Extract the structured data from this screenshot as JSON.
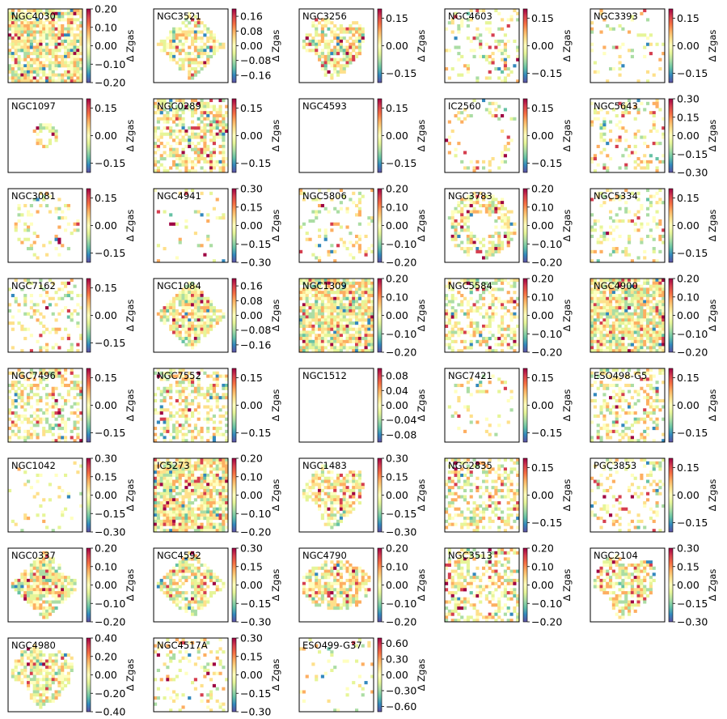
{
  "colorbar_label": "Δ Zgas",
  "colormap": [
    "#5e4fa2",
    "#3288bd",
    "#66c2a5",
    "#abdda4",
    "#e6f598",
    "#ffffbf",
    "#fee08b",
    "#fdae61",
    "#f46d43",
    "#d53e4f",
    "#9e0142"
  ],
  "chart_data": [
    {
      "type": "heatmap",
      "title": "NGC4030",
      "colorbar_ticks": [
        -0.2,
        -0.1,
        0.0,
        0.1,
        0.2
      ],
      "colorbar_tick_labels": [
        "−0.20",
        "−0.10",
        "0.00",
        "0.10",
        "0.20"
      ],
      "vlim": [
        -0.2,
        0.2
      ],
      "colorbar_label": "Δ Zgas",
      "coverage": "full",
      "shape": "square"
    },
    {
      "type": "heatmap",
      "title": "NGC3521",
      "colorbar_ticks": [
        -0.16,
        -0.08,
        0.0,
        0.08,
        0.16
      ],
      "colorbar_tick_labels": [
        "−0.16",
        "−0.08",
        "0.00",
        "0.08",
        "0.16"
      ],
      "vlim": [
        -0.2,
        0.2
      ],
      "colorbar_label": "Δ Zgas",
      "coverage": "ring",
      "shape": "diamond"
    },
    {
      "type": "heatmap",
      "title": "NGC3256",
      "colorbar_ticks": [
        -0.15,
        0.0,
        0.15
      ],
      "colorbar_tick_labels": [
        "−0.15",
        "0.00",
        "0.15"
      ],
      "vlim": [
        -0.2,
        0.2
      ],
      "colorbar_label": "Δ Zgas",
      "coverage": "blob",
      "shape": "irregular"
    },
    {
      "type": "heatmap",
      "title": "NGC4603",
      "colorbar_ticks": [
        -0.15,
        0.0,
        0.15
      ],
      "colorbar_tick_labels": [
        "−0.15",
        "0.00",
        "0.15"
      ],
      "vlim": [
        -0.2,
        0.2
      ],
      "colorbar_label": "Δ Zgas",
      "coverage": "sparse",
      "shape": "square"
    },
    {
      "type": "heatmap",
      "title": "NGC3393",
      "colorbar_ticks": [
        -0.15,
        0.0,
        0.15
      ],
      "colorbar_tick_labels": [
        "−0.15",
        "0.00",
        "0.15"
      ],
      "vlim": [
        -0.2,
        0.2
      ],
      "colorbar_label": "Δ Zgas",
      "coverage": "very-sparse",
      "shape": "square"
    },
    {
      "type": "heatmap",
      "title": "NGC1097",
      "colorbar_ticks": [
        -0.15,
        0.0,
        0.15
      ],
      "colorbar_tick_labels": [
        "−0.15",
        "0.00",
        "0.15"
      ],
      "vlim": [
        -0.2,
        0.2
      ],
      "colorbar_label": "Δ Zgas",
      "coverage": "small-ring",
      "shape": "ring"
    },
    {
      "type": "heatmap",
      "title": "NGC0289",
      "colorbar_ticks": [
        -0.15,
        0.0,
        0.15
      ],
      "colorbar_tick_labels": [
        "−0.15",
        "0.00",
        "0.15"
      ],
      "vlim": [
        -0.2,
        0.2
      ],
      "colorbar_label": "Δ Zgas",
      "coverage": "ring",
      "shape": "square"
    },
    {
      "type": "heatmap",
      "title": "NGC4593",
      "colorbar_ticks": [
        -0.15,
        0.0,
        0.15
      ],
      "colorbar_tick_labels": [
        "−0.15",
        "0.00",
        "0.15"
      ],
      "vlim": [
        -0.2,
        0.2
      ],
      "colorbar_label": "Δ Zgas",
      "coverage": "empty",
      "shape": "square"
    },
    {
      "type": "heatmap",
      "title": "IC2560",
      "colorbar_ticks": [
        -0.15,
        0.0,
        0.15
      ],
      "colorbar_tick_labels": [
        "−0.15",
        "0.00",
        "0.15"
      ],
      "vlim": [
        -0.2,
        0.2
      ],
      "colorbar_label": "Δ Zgas",
      "coverage": "sparse",
      "shape": "arc"
    },
    {
      "type": "heatmap",
      "title": "NGC5643",
      "colorbar_ticks": [
        -0.3,
        -0.15,
        0.0,
        0.15,
        0.3
      ],
      "colorbar_tick_labels": [
        "−0.30",
        "−0.15",
        "0.00",
        "0.15",
        "0.30"
      ],
      "vlim": [
        -0.3,
        0.3
      ],
      "colorbar_label": "Δ Zgas",
      "coverage": "sparse",
      "shape": "square"
    },
    {
      "type": "heatmap",
      "title": "NGC3081",
      "colorbar_ticks": [
        -0.15,
        0.0,
        0.15
      ],
      "colorbar_tick_labels": [
        "−0.15",
        "0.00",
        "0.15"
      ],
      "vlim": [
        -0.2,
        0.2
      ],
      "colorbar_label": "Δ Zgas",
      "coverage": "thin-ring",
      "shape": "ring"
    },
    {
      "type": "heatmap",
      "title": "NGC4941",
      "colorbar_ticks": [
        -0.3,
        -0.15,
        0.0,
        0.15,
        0.3
      ],
      "colorbar_tick_labels": [
        "−0.30",
        "−0.15",
        "0.00",
        "0.15",
        "0.30"
      ],
      "vlim": [
        -0.3,
        0.3
      ],
      "colorbar_label": "Δ Zgas",
      "coverage": "very-sparse",
      "shape": "square"
    },
    {
      "type": "heatmap",
      "title": "NGC5806",
      "colorbar_ticks": [
        -0.2,
        -0.1,
        0.0,
        0.1,
        0.2
      ],
      "colorbar_tick_labels": [
        "−0.20",
        "−0.10",
        "0.00",
        "0.10",
        "0.20"
      ],
      "vlim": [
        -0.2,
        0.2
      ],
      "colorbar_label": "Δ Zgas",
      "coverage": "sparse",
      "shape": "square"
    },
    {
      "type": "heatmap",
      "title": "NGC3783",
      "colorbar_ticks": [
        -0.2,
        -0.1,
        0.0,
        0.1,
        0.2
      ],
      "colorbar_tick_labels": [
        "−0.20",
        "−0.10",
        "0.00",
        "0.10",
        "0.20"
      ],
      "vlim": [
        -0.2,
        0.2
      ],
      "colorbar_label": "Δ Zgas",
      "coverage": "ring",
      "shape": "ring"
    },
    {
      "type": "heatmap",
      "title": "NGC5334",
      "colorbar_ticks": [
        -0.15,
        0.0,
        0.15
      ],
      "colorbar_tick_labels": [
        "−0.15",
        "0.00",
        "0.15"
      ],
      "vlim": [
        -0.2,
        0.2
      ],
      "colorbar_label": "Δ Zgas",
      "coverage": "sparse",
      "shape": "square"
    },
    {
      "type": "heatmap",
      "title": "NGC7162",
      "colorbar_ticks": [
        -0.15,
        0.0,
        0.15
      ],
      "colorbar_tick_labels": [
        "−0.15",
        "0.00",
        "0.15"
      ],
      "vlim": [
        -0.2,
        0.2
      ],
      "colorbar_label": "Δ Zgas",
      "coverage": "sparse",
      "shape": "square"
    },
    {
      "type": "heatmap",
      "title": "NGC1084",
      "colorbar_ticks": [
        -0.16,
        -0.08,
        0.0,
        0.08,
        0.16
      ],
      "colorbar_tick_labels": [
        "−0.16",
        "−0.08",
        "0.00",
        "0.08",
        "0.16"
      ],
      "vlim": [
        -0.2,
        0.2
      ],
      "colorbar_label": "Δ Zgas",
      "coverage": "full",
      "shape": "diamond"
    },
    {
      "type": "heatmap",
      "title": "NGC1309",
      "colorbar_ticks": [
        -0.2,
        -0.1,
        0.0,
        0.1,
        0.2
      ],
      "colorbar_tick_labels": [
        "−0.20",
        "−0.10",
        "0.00",
        "0.10",
        "0.20"
      ],
      "vlim": [
        -0.2,
        0.2
      ],
      "colorbar_label": "Δ Zgas",
      "coverage": "full",
      "shape": "square"
    },
    {
      "type": "heatmap",
      "title": "NGC5584",
      "colorbar_ticks": [
        -0.2,
        -0.1,
        0.0,
        0.1,
        0.2
      ],
      "colorbar_tick_labels": [
        "−0.20",
        "−0.10",
        "0.00",
        "0.10",
        "0.20"
      ],
      "vlim": [
        -0.2,
        0.2
      ],
      "colorbar_label": "Δ Zgas",
      "coverage": "patchy",
      "shape": "square"
    },
    {
      "type": "heatmap",
      "title": "NGC4900",
      "colorbar_ticks": [
        -0.2,
        -0.1,
        0.0,
        0.1,
        0.2
      ],
      "colorbar_tick_labels": [
        "−0.20",
        "−0.10",
        "0.00",
        "0.10",
        "0.20"
      ],
      "vlim": [
        -0.2,
        0.2
      ],
      "colorbar_label": "Δ Zgas",
      "coverage": "full",
      "shape": "square"
    },
    {
      "type": "heatmap",
      "title": "NGC7496",
      "colorbar_ticks": [
        -0.15,
        0.0,
        0.15
      ],
      "colorbar_tick_labels": [
        "−0.15",
        "0.00",
        "0.15"
      ],
      "vlim": [
        -0.2,
        0.2
      ],
      "colorbar_label": "Δ Zgas",
      "coverage": "patchy",
      "shape": "square"
    },
    {
      "type": "heatmap",
      "title": "NGC7552",
      "colorbar_ticks": [
        -0.15,
        0.0,
        0.15
      ],
      "colorbar_tick_labels": [
        "−0.15",
        "0.00",
        "0.15"
      ],
      "vlim": [
        -0.2,
        0.2
      ],
      "colorbar_label": "Δ Zgas",
      "coverage": "patchy",
      "shape": "square"
    },
    {
      "type": "heatmap",
      "title": "NGC1512",
      "colorbar_ticks": [
        -0.08,
        -0.04,
        0.0,
        0.04,
        0.08
      ],
      "colorbar_tick_labels": [
        "−0.08",
        "−0.04",
        "0.00",
        "0.04",
        "0.08"
      ],
      "vlim": [
        -0.1,
        0.1
      ],
      "colorbar_label": "Δ Zgas",
      "coverage": "empty",
      "shape": "square"
    },
    {
      "type": "heatmap",
      "title": "NGC7421",
      "colorbar_ticks": [
        -0.15,
        0.0,
        0.15
      ],
      "colorbar_tick_labels": [
        "−0.15",
        "0.00",
        "0.15"
      ],
      "vlim": [
        -0.2,
        0.2
      ],
      "colorbar_label": "Δ Zgas",
      "coverage": "sparse",
      "shape": "ring"
    },
    {
      "type": "heatmap",
      "title": "ESO498-G5",
      "colorbar_ticks": [
        -0.15,
        0.0,
        0.15
      ],
      "colorbar_tick_labels": [
        "−0.15",
        "0.00",
        "0.15"
      ],
      "vlim": [
        -0.2,
        0.2
      ],
      "colorbar_label": "Δ Zgas",
      "coverage": "spiral",
      "shape": "square"
    },
    {
      "type": "heatmap",
      "title": "NGC1042",
      "colorbar_ticks": [
        -0.3,
        -0.15,
        0.0,
        0.15,
        0.3
      ],
      "colorbar_tick_labels": [
        "−0.30",
        "−0.15",
        "0.00",
        "0.15",
        "0.30"
      ],
      "vlim": [
        -0.3,
        0.3
      ],
      "colorbar_label": "Δ Zgas",
      "coverage": "very-sparse",
      "shape": "square"
    },
    {
      "type": "heatmap",
      "title": "IC5273",
      "colorbar_ticks": [
        -0.2,
        -0.1,
        0.0,
        0.1,
        0.2
      ],
      "colorbar_tick_labels": [
        "−0.20",
        "−0.10",
        "0.00",
        "0.10",
        "0.20"
      ],
      "vlim": [
        -0.2,
        0.2
      ],
      "colorbar_label": "Δ Zgas",
      "coverage": "full",
      "shape": "square"
    },
    {
      "type": "heatmap",
      "title": "NGC1483",
      "colorbar_ticks": [
        -0.3,
        -0.15,
        0.0,
        0.15,
        0.3
      ],
      "colorbar_tick_labels": [
        "−0.30",
        "−0.15",
        "0.00",
        "0.15",
        "0.30"
      ],
      "vlim": [
        -0.3,
        0.3
      ],
      "colorbar_label": "Δ Zgas",
      "coverage": "blob",
      "shape": "irregular"
    },
    {
      "type": "heatmap",
      "title": "NGC2835",
      "colorbar_ticks": [
        -0.15,
        0.0,
        0.15
      ],
      "colorbar_tick_labels": [
        "−0.15",
        "0.00",
        "0.15"
      ],
      "vlim": [
        -0.2,
        0.2
      ],
      "colorbar_label": "Δ Zgas",
      "coverage": "patchy",
      "shape": "square"
    },
    {
      "type": "heatmap",
      "title": "PGC3853",
      "colorbar_ticks": [
        -0.15,
        0.0,
        0.15
      ],
      "colorbar_tick_labels": [
        "−0.15",
        "0.00",
        "0.15"
      ],
      "vlim": [
        -0.2,
        0.2
      ],
      "colorbar_label": "Δ Zgas",
      "coverage": "sparse",
      "shape": "square"
    },
    {
      "type": "heatmap",
      "title": "NGC0337",
      "colorbar_ticks": [
        -0.2,
        -0.1,
        0.0,
        0.1,
        0.2
      ],
      "colorbar_tick_labels": [
        "−0.20",
        "−0.10",
        "0.00",
        "0.10",
        "0.20"
      ],
      "vlim": [
        -0.2,
        0.2
      ],
      "colorbar_label": "Δ Zgas",
      "coverage": "full",
      "shape": "diamond"
    },
    {
      "type": "heatmap",
      "title": "NGC4592",
      "colorbar_ticks": [
        -0.3,
        -0.15,
        0.0,
        0.15,
        0.3
      ],
      "colorbar_tick_labels": [
        "−0.30",
        "−0.15",
        "0.00",
        "0.15",
        "0.30"
      ],
      "vlim": [
        -0.3,
        0.3
      ],
      "colorbar_label": "Δ Zgas",
      "coverage": "blob",
      "shape": "diamond"
    },
    {
      "type": "heatmap",
      "title": "NGC4790",
      "colorbar_ticks": [
        -0.2,
        -0.1,
        0.0,
        0.1,
        0.2
      ],
      "colorbar_tick_labels": [
        "−0.20",
        "−0.10",
        "0.00",
        "0.10",
        "0.20"
      ],
      "vlim": [
        -0.2,
        0.2
      ],
      "colorbar_label": "Δ Zgas",
      "coverage": "blob",
      "shape": "ellipse"
    },
    {
      "type": "heatmap",
      "title": "NGC3513",
      "colorbar_ticks": [
        -0.2,
        -0.1,
        0.0,
        0.1,
        0.2
      ],
      "colorbar_tick_labels": [
        "−0.20",
        "−0.10",
        "0.00",
        "0.10",
        "0.20"
      ],
      "vlim": [
        -0.2,
        0.2
      ],
      "colorbar_label": "Δ Zgas",
      "coverage": "patchy",
      "shape": "square"
    },
    {
      "type": "heatmap",
      "title": "NGC2104",
      "colorbar_ticks": [
        -0.3,
        -0.15,
        0.0,
        0.15,
        0.3
      ],
      "colorbar_tick_labels": [
        "−0.30",
        "−0.15",
        "0.00",
        "0.15",
        "0.30"
      ],
      "vlim": [
        -0.3,
        0.3
      ],
      "colorbar_label": "Δ Zgas",
      "coverage": "blob",
      "shape": "irregular"
    },
    {
      "type": "heatmap",
      "title": "NGC4980",
      "colorbar_ticks": [
        -0.4,
        -0.2,
        0.0,
        0.2,
        0.4
      ],
      "colorbar_tick_labels": [
        "−0.40",
        "−0.20",
        "0.00",
        "0.20",
        "0.40"
      ],
      "vlim": [
        -0.4,
        0.4
      ],
      "colorbar_label": "Δ Zgas",
      "coverage": "blob",
      "shape": "irregular"
    },
    {
      "type": "heatmap",
      "title": "NGC4517A",
      "colorbar_ticks": [
        -0.3,
        -0.15,
        0.0,
        0.15,
        0.3
      ],
      "colorbar_tick_labels": [
        "−0.30",
        "−0.15",
        "0.00",
        "0.15",
        "0.30"
      ],
      "vlim": [
        -0.3,
        0.3
      ],
      "colorbar_label": "Δ Zgas",
      "coverage": "sparse",
      "shape": "square"
    },
    {
      "type": "heatmap",
      "title": "ESO499-G37",
      "colorbar_ticks": [
        -0.6,
        -0.3,
        0.0,
        0.3,
        0.6
      ],
      "colorbar_tick_labels": [
        "−0.60",
        "−0.30",
        "0.00",
        "0.30",
        "0.60"
      ],
      "vlim": [
        -0.7,
        0.7
      ],
      "colorbar_label": "Δ Zgas",
      "coverage": "very-sparse",
      "shape": "square"
    }
  ]
}
